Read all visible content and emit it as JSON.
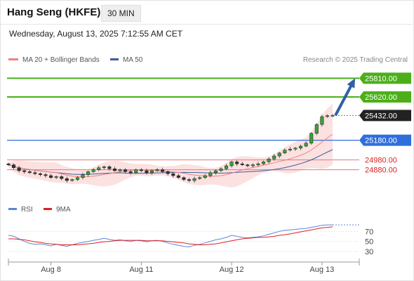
{
  "header": {
    "title": "Hang Seng (HKFE)",
    "timeframe": "30 MIN",
    "datetime": "Wednesday, August 13, 2025 7:12:55 AM CET"
  },
  "legend": {
    "ma20_label": "MA 20 + Bollinger Bands",
    "ma50_label": "MA 50",
    "credit": "Research © 2025 Trading Central",
    "colors": {
      "ma20": "#f08080",
      "ma50": "#3a5f9e"
    }
  },
  "rsi_legend": {
    "rsi_label": "RSI",
    "ma_label": "9MA",
    "colors": {
      "rsi": "#5b86d9",
      "ma": "#e02020"
    }
  },
  "chart_data": [
    {
      "type": "candlestick",
      "title": "",
      "xlabel": "",
      "ylabel": "",
      "ylim": [
        24620,
        25920
      ],
      "x_ticks": [
        "Aug 8",
        "Aug 11",
        "Aug 12",
        "Aug 13"
      ],
      "x_tick_bar_index": [
        8,
        25,
        42,
        59
      ],
      "bar_count": 62,
      "close": [
        24930,
        24900,
        24870,
        24860,
        24850,
        24840,
        24830,
        24820,
        24800,
        24810,
        24790,
        24770,
        24780,
        24800,
        24830,
        24860,
        24880,
        24900,
        24910,
        24890,
        24870,
        24880,
        24860,
        24850,
        24880,
        24870,
        24850,
        24870,
        24880,
        24860,
        24840,
        24820,
        24800,
        24780,
        24770,
        24790,
        24800,
        24820,
        24850,
        24870,
        24890,
        24920,
        24960,
        24940,
        24930,
        24920,
        24930,
        24940,
        24960,
        24990,
        25020,
        25050,
        25080,
        25090,
        25100,
        25120,
        25150,
        25250,
        25340,
        25420,
        25430,
        25432
      ],
      "price_levels": [
        {
          "value": "25810.00",
          "color": "#4caf1a",
          "style": "resistance"
        },
        {
          "value": "25620.00",
          "color": "#4caf1a",
          "style": "resistance"
        },
        {
          "value": "25432.00",
          "color": "#222222",
          "style": "last"
        },
        {
          "value": "25180.00",
          "color": "#2f6fdc",
          "style": "pivot"
        },
        {
          "value": "24980.00",
          "color": "#e02020",
          "style": "support"
        },
        {
          "value": "24880.00",
          "color": "#e02020",
          "style": "support"
        }
      ],
      "projection": {
        "from_value": 25432,
        "to_value": 25810,
        "color": "#2f5fa8"
      }
    },
    {
      "type": "line",
      "title": "RSI",
      "ylim": [
        10,
        100
      ],
      "y_ticks": [
        "70",
        "50",
        "30"
      ],
      "series": [
        {
          "name": "RSI",
          "values": [
            62,
            60,
            55,
            50,
            46,
            44,
            45,
            43,
            41,
            44,
            42,
            40,
            43,
            46,
            48,
            50,
            52,
            54,
            56,
            54,
            52,
            53,
            51,
            50,
            52,
            51,
            49,
            51,
            52,
            50,
            47,
            44,
            42,
            40,
            39,
            42,
            44,
            47,
            50,
            53,
            55,
            58,
            62,
            60,
            58,
            57,
            58,
            59,
            61,
            64,
            67,
            70,
            72,
            73,
            74,
            75,
            76,
            78,
            80,
            82,
            83,
            83
          ]
        },
        {
          "name": "9MA",
          "values": [
            55,
            55,
            54,
            53,
            51,
            49,
            48,
            46,
            45,
            44,
            43,
            43,
            43,
            43,
            44,
            45,
            46,
            48,
            49,
            50,
            51,
            52,
            52,
            52,
            52,
            52,
            51,
            51,
            51,
            51,
            50,
            49,
            48,
            47,
            45,
            44,
            43,
            43,
            44,
            45,
            47,
            49,
            51,
            53,
            55,
            56,
            57,
            58,
            58,
            59,
            60,
            62,
            63,
            65,
            67,
            69,
            71,
            73,
            75,
            77,
            78,
            79
          ]
        }
      ]
    }
  ]
}
